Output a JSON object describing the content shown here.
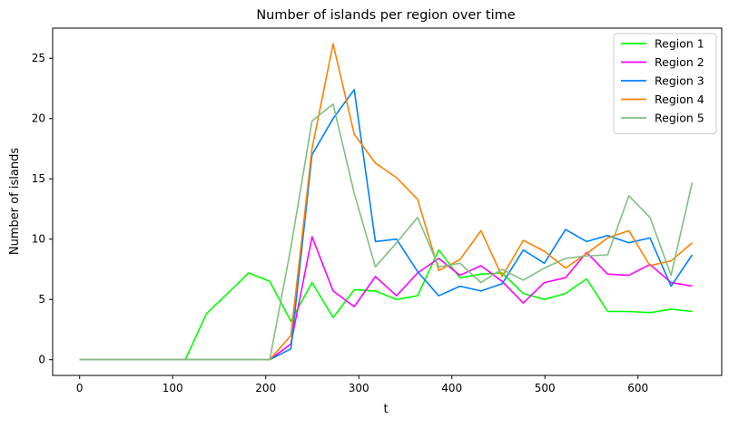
{
  "chart_data": {
    "type": "line",
    "title": "Number of islands per region over time",
    "xlabel": "t",
    "ylabel": "Number of islands",
    "xlim": [
      -29,
      690
    ],
    "ylim": [
      -1.3,
      27.5
    ],
    "xticks": [
      0,
      100,
      200,
      300,
      400,
      500,
      600
    ],
    "yticks": [
      0,
      5,
      10,
      15,
      20,
      25
    ],
    "grid": false,
    "legend_position": "top-right",
    "x": [
      0,
      22.7,
      45.4,
      68.1,
      90.8,
      113.5,
      136.2,
      158.9,
      181.6,
      204.3,
      227,
      249.7,
      272.4,
      295.1,
      317.8,
      340.5,
      363.2,
      385.9,
      408.6,
      431.3,
      454,
      476.7,
      499.4,
      522.1,
      544.8,
      567.5,
      590.2,
      612.9,
      635.6,
      658.3
    ],
    "series": [
      {
        "name": "Region 1",
        "color": "#00ff00",
        "values": [
          0,
          0,
          0,
          0,
          0,
          0,
          3.8,
          5.5,
          7.2,
          6.5,
          3.2,
          6.4,
          3.5,
          5.8,
          5.7,
          5.0,
          5.3,
          9.1,
          6.8,
          7.1,
          7.2,
          5.5,
          5.0,
          5.5,
          6.7,
          4.0,
          4.0,
          3.9,
          4.2,
          4.0
        ]
      },
      {
        "name": "Region 2",
        "color": "#ff00ff",
        "values": [
          0,
          0,
          0,
          0,
          0,
          0,
          0,
          0,
          0,
          0,
          1.3,
          10.2,
          5.7,
          4.4,
          6.9,
          5.3,
          7.2,
          8.4,
          7.0,
          7.8,
          6.5,
          4.7,
          6.4,
          6.8,
          8.9,
          7.1,
          7.0,
          7.9,
          6.4,
          6.1
        ]
      },
      {
        "name": "Region 3",
        "color": "#0080ff",
        "values": [
          0,
          0,
          0,
          0,
          0,
          0,
          0,
          0,
          0,
          0,
          0.9,
          17.0,
          20.0,
          22.4,
          9.8,
          10.0,
          7.3,
          5.3,
          6.1,
          5.7,
          6.3,
          9.1,
          8.0,
          10.8,
          9.8,
          10.3,
          9.7,
          10.1,
          6.1,
          8.7
        ]
      },
      {
        "name": "Region 4",
        "color": "#ff8000",
        "values": [
          0,
          0,
          0,
          0,
          0,
          0,
          0,
          0,
          0,
          0,
          2.0,
          17.5,
          26.2,
          18.7,
          16.3,
          15.1,
          13.3,
          7.4,
          8.3,
          10.7,
          6.9,
          9.9,
          9.0,
          7.6,
          8.8,
          10.1,
          10.7,
          7.8,
          8.2,
          9.7
        ]
      },
      {
        "name": "Region 5",
        "color": "#80c080",
        "values": [
          0,
          0,
          0,
          0,
          0,
          0,
          0,
          0,
          0,
          0,
          9.3,
          19.8,
          21.2,
          13.8,
          7.7,
          9.7,
          11.8,
          7.7,
          8.0,
          6.4,
          7.5,
          6.6,
          7.6,
          8.4,
          8.6,
          8.7,
          13.6,
          11.8,
          7.0,
          14.7
        ]
      }
    ]
  }
}
